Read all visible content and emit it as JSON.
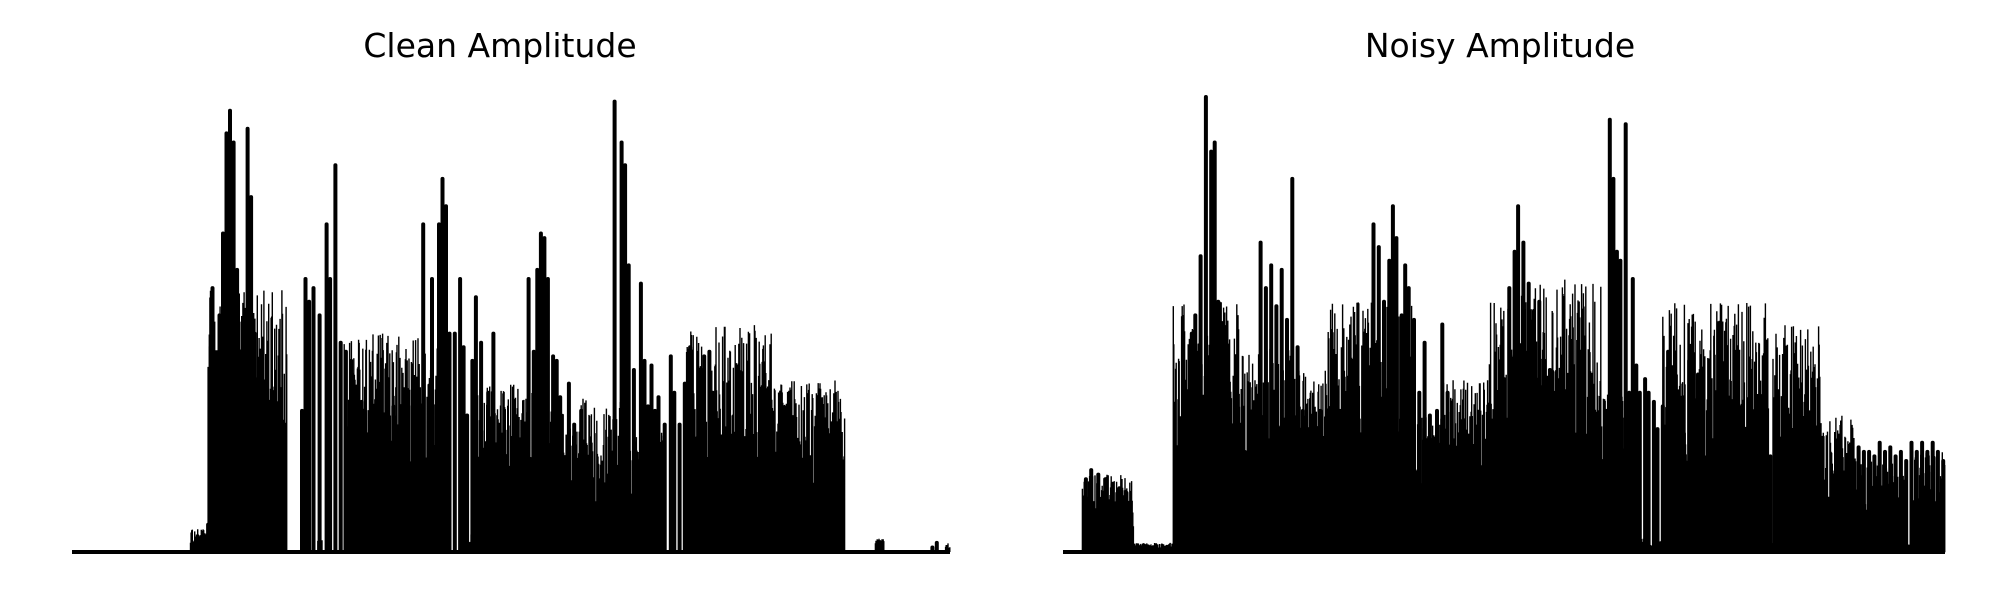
{
  "chart_data": [
    {
      "type": "line",
      "title": "Clean Amplitude",
      "xlabel": "",
      "ylabel": "",
      "axes": "off",
      "grid": false,
      "legend": "none",
      "color": "#000000",
      "ylim": [
        0,
        1
      ],
      "series": [
        {
          "segments": [
            [
              0.0,
              0.03,
              0.0
            ],
            [
              0.135,
              0.16,
              0.05
            ],
            [
              0.155,
              0.245,
              0.58
            ],
            [
              0.28,
              0.285,
              0.03
            ],
            [
              0.31,
              0.42,
              0.48
            ],
            [
              0.445,
              0.455,
              0.04
            ],
            [
              0.46,
              0.515,
              0.37
            ],
            [
              0.515,
              0.56,
              0.35
            ],
            [
              0.56,
              0.58,
              0.28
            ],
            [
              0.58,
              0.625,
              0.34
            ],
            [
              0.625,
              0.675,
              0.27
            ],
            [
              0.7,
              0.8,
              0.5
            ],
            [
              0.8,
              0.88,
              0.38
            ],
            [
              0.915,
              0.925,
              0.03
            ],
            [
              0.995,
              1.0,
              0.02
            ]
          ],
          "peaks": [
            [
              0.155,
              0.06
            ],
            [
              0.158,
              0.45
            ],
            [
              0.16,
              0.58
            ],
            [
              0.168,
              0.52
            ],
            [
              0.172,
              0.7
            ],
            [
              0.176,
              0.92
            ],
            [
              0.18,
              0.97
            ],
            [
              0.184,
              0.9
            ],
            [
              0.188,
              0.62
            ],
            [
              0.196,
              0.45
            ],
            [
              0.2,
              0.93
            ],
            [
              0.204,
              0.78
            ],
            [
              0.208,
              0.48
            ],
            [
              0.214,
              0.33
            ],
            [
              0.22,
              0.25
            ],
            [
              0.228,
              0.15
            ],
            [
              0.262,
              0.31
            ],
            [
              0.266,
              0.6
            ],
            [
              0.27,
              0.55
            ],
            [
              0.275,
              0.58
            ],
            [
              0.282,
              0.52
            ],
            [
              0.29,
              0.72
            ],
            [
              0.294,
              0.6
            ],
            [
              0.3,
              0.85
            ],
            [
              0.306,
              0.46
            ],
            [
              0.312,
              0.44
            ],
            [
              0.318,
              0.42
            ],
            [
              0.323,
              0.35
            ],
            [
              0.33,
              0.33
            ],
            [
              0.338,
              0.26
            ],
            [
              0.346,
              0.32
            ],
            [
              0.352,
              0.32
            ],
            [
              0.36,
              0.38
            ],
            [
              0.366,
              0.32
            ],
            [
              0.374,
              0.25
            ],
            [
              0.382,
              0.35
            ],
            [
              0.388,
              0.32
            ],
            [
              0.4,
              0.72
            ],
            [
              0.41,
              0.6
            ],
            [
              0.418,
              0.72
            ],
            [
              0.422,
              0.82
            ],
            [
              0.426,
              0.76
            ],
            [
              0.43,
              0.48
            ],
            [
              0.436,
              0.48
            ],
            [
              0.442,
              0.6
            ],
            [
              0.446,
              0.45
            ],
            [
              0.45,
              0.3
            ],
            [
              0.456,
              0.42
            ],
            [
              0.46,
              0.56
            ],
            [
              0.466,
              0.46
            ],
            [
              0.474,
              0.35
            ],
            [
              0.48,
              0.48
            ],
            [
              0.486,
              0.28
            ],
            [
              0.498,
              0.06
            ],
            [
              0.52,
              0.6
            ],
            [
              0.526,
              0.44
            ],
            [
              0.53,
              0.62
            ],
            [
              0.534,
              0.7
            ],
            [
              0.538,
              0.69
            ],
            [
              0.542,
              0.6
            ],
            [
              0.548,
              0.43
            ],
            [
              0.552,
              0.42
            ],
            [
              0.556,
              0.34
            ],
            [
              0.566,
              0.37
            ],
            [
              0.572,
              0.28
            ],
            [
              0.58,
              0.31
            ],
            [
              0.585,
              0.2
            ],
            [
              0.59,
              0.03
            ],
            [
              0.596,
              0.05
            ],
            [
              0.602,
              0.03
            ],
            [
              0.61,
              0.02
            ],
            [
              0.618,
              0.99
            ],
            [
              0.626,
              0.9
            ],
            [
              0.63,
              0.85
            ],
            [
              0.634,
              0.63
            ],
            [
              0.64,
              0.4
            ],
            [
              0.648,
              0.59
            ],
            [
              0.652,
              0.42
            ],
            [
              0.656,
              0.32
            ],
            [
              0.66,
              0.41
            ],
            [
              0.664,
              0.31
            ],
            [
              0.668,
              0.34
            ],
            [
              0.675,
              0.28
            ],
            [
              0.682,
              0.43
            ],
            [
              0.686,
              0.35
            ],
            [
              0.692,
              0.28
            ],
            [
              0.698,
              0.37
            ],
            [
              0.704,
              0.45
            ],
            [
              0.712,
              0.25
            ],
            [
              0.72,
              0.43
            ],
            [
              0.726,
              0.44
            ],
            [
              0.73,
              0.35
            ],
            [
              0.735,
              0.15
            ],
            [
              0.74,
              0.2
            ],
            [
              0.746,
              0.2
            ],
            [
              0.756,
              0.01
            ],
            [
              0.98,
              0.01
            ],
            [
              0.985,
              0.02
            ]
          ]
        }
      ]
    },
    {
      "type": "line",
      "title": "Noisy Amplitude",
      "xlabel": "",
      "ylabel": "",
      "axes": "off",
      "grid": false,
      "legend": "none",
      "color": "#000000",
      "ylim": [
        0,
        1
      ],
      "series": [
        {
          "segments": [
            [
              0.0,
              0.022,
              0.0
            ],
            [
              0.022,
              0.08,
              0.17
            ],
            [
              0.08,
              0.125,
              0.02
            ],
            [
              0.125,
              0.2,
              0.55
            ],
            [
              0.2,
              0.26,
              0.45
            ],
            [
              0.26,
              0.3,
              0.4
            ],
            [
              0.3,
              0.4,
              0.55
            ],
            [
              0.4,
              0.43,
              0.3
            ],
            [
              0.43,
              0.48,
              0.38
            ],
            [
              0.48,
              0.52,
              0.55
            ],
            [
              0.52,
              0.52,
              0.0
            ],
            [
              0.52,
              0.61,
              0.6
            ],
            [
              0.61,
              0.64,
              0.35
            ],
            [
              0.64,
              0.68,
              0.03
            ],
            [
              0.68,
              0.8,
              0.55
            ],
            [
              0.8,
              0.805,
              0.03
            ],
            [
              0.805,
              0.86,
              0.5
            ],
            [
              0.86,
              0.9,
              0.3
            ],
            [
              0.9,
              0.905,
              0.03
            ],
            [
              0.905,
              0.955,
              0.2
            ],
            [
              0.955,
              0.965,
              0.02
            ],
            [
              0.965,
              1.0,
              0.22
            ]
          ],
          "peaks": [
            [
              0.026,
              0.16
            ],
            [
              0.032,
              0.18
            ],
            [
              0.04,
              0.17
            ],
            [
              0.048,
              0.16
            ],
            [
              0.056,
              0.15
            ],
            [
              0.064,
              0.14
            ],
            [
              0.072,
              0.13
            ],
            [
              0.128,
              0.2
            ],
            [
              0.134,
              0.24
            ],
            [
              0.14,
              0.22
            ],
            [
              0.146,
              0.48
            ],
            [
              0.15,
              0.52
            ],
            [
              0.156,
              0.65
            ],
            [
              0.162,
              1.0
            ],
            [
              0.168,
              0.88
            ],
            [
              0.172,
              0.9
            ],
            [
              0.176,
              0.55
            ],
            [
              0.184,
              0.43
            ],
            [
              0.19,
              0.28
            ],
            [
              0.196,
              0.23
            ],
            [
              0.2,
              0.28
            ],
            [
              0.206,
              0.22
            ],
            [
              0.212,
              0.23
            ],
            [
              0.218,
              0.22
            ],
            [
              0.224,
              0.68
            ],
            [
              0.23,
              0.58
            ],
            [
              0.236,
              0.63
            ],
            [
              0.242,
              0.54
            ],
            [
              0.248,
              0.62
            ],
            [
              0.254,
              0.51
            ],
            [
              0.26,
              0.82
            ],
            [
              0.266,
              0.45
            ],
            [
              0.272,
              0.31
            ],
            [
              0.278,
              0.27
            ],
            [
              0.286,
              0.24
            ],
            [
              0.292,
              0.31
            ],
            [
              0.3,
              0.23
            ],
            [
              0.308,
              0.26
            ],
            [
              0.314,
              0.31
            ],
            [
              0.322,
              0.3
            ],
            [
              0.33,
              0.21
            ],
            [
              0.34,
              0.1
            ],
            [
              0.352,
              0.72
            ],
            [
              0.358,
              0.67
            ],
            [
              0.364,
              0.55
            ],
            [
              0.37,
              0.64
            ],
            [
              0.374,
              0.76
            ],
            [
              0.378,
              0.69
            ],
            [
              0.384,
              0.52
            ],
            [
              0.388,
              0.63
            ],
            [
              0.392,
              0.58
            ],
            [
              0.398,
              0.51
            ],
            [
              0.404,
              0.35
            ],
            [
              0.41,
              0.46
            ],
            [
              0.416,
              0.3
            ],
            [
              0.424,
              0.31
            ],
            [
              0.43,
              0.5
            ],
            [
              0.436,
              0.35
            ],
            [
              0.45,
              0.02
            ],
            [
              0.5,
              0.38
            ],
            [
              0.506,
              0.58
            ],
            [
              0.512,
              0.66
            ],
            [
              0.516,
              0.76
            ],
            [
              0.522,
              0.68
            ],
            [
              0.528,
              0.59
            ],
            [
              0.534,
              0.53
            ],
            [
              0.54,
              0.55
            ],
            [
              0.546,
              0.42
            ],
            [
              0.552,
              0.4
            ],
            [
              0.558,
              0.35
            ],
            [
              0.564,
              0.25
            ],
            [
              0.57,
              0.34
            ],
            [
              0.576,
              0.2
            ],
            [
              0.582,
              0.05
            ],
            [
              0.588,
              0.04
            ],
            [
              0.594,
              0.03
            ],
            [
              0.616,
              0.31
            ],
            [
              0.62,
              0.95
            ],
            [
              0.624,
              0.82
            ],
            [
              0.628,
              0.66
            ],
            [
              0.632,
              0.64
            ],
            [
              0.638,
              0.94
            ],
            [
              0.642,
              0.35
            ],
            [
              0.646,
              0.6
            ],
            [
              0.65,
              0.41
            ],
            [
              0.654,
              0.35
            ],
            [
              0.66,
              0.38
            ],
            [
              0.664,
              0.35
            ],
            [
              0.67,
              0.33
            ],
            [
              0.674,
              0.27
            ],
            [
              0.68,
              0.32
            ],
            [
              0.686,
              0.44
            ],
            [
              0.69,
              0.38
            ],
            [
              0.694,
              0.33
            ],
            [
              0.698,
              0.27
            ],
            [
              0.704,
              0.26
            ],
            [
              0.71,
              0.42
            ],
            [
              0.714,
              0.22
            ],
            [
              0.72,
              0.39
            ],
            [
              0.726,
              0.19
            ],
            [
              0.732,
              0.2
            ],
            [
              0.738,
              0.17
            ],
            [
              0.79,
              0.21
            ],
            [
              0.796,
              0.2
            ],
            [
              0.802,
              0.21
            ],
            [
              0.808,
              0.22
            ],
            [
              0.816,
              0.21
            ],
            [
              0.82,
              0.2
            ],
            [
              0.826,
              0.22
            ],
            [
              0.832,
              0.19
            ],
            [
              0.838,
              0.2
            ],
            [
              0.844,
              0.2
            ],
            [
              0.896,
              0.17
            ],
            [
              0.902,
              0.23
            ],
            [
              0.908,
              0.22
            ],
            [
              0.914,
              0.22
            ],
            [
              0.92,
              0.21
            ],
            [
              0.926,
              0.24
            ],
            [
              0.932,
              0.22
            ],
            [
              0.938,
              0.23
            ],
            [
              0.944,
              0.21
            ],
            [
              0.95,
              0.22
            ],
            [
              0.956,
              0.2
            ],
            [
              0.962,
              0.24
            ],
            [
              0.968,
              0.22
            ],
            [
              0.974,
              0.24
            ],
            [
              0.98,
              0.22
            ],
            [
              0.986,
              0.24
            ],
            [
              0.992,
              0.22
            ],
            [
              0.998,
              0.2
            ]
          ]
        }
      ]
    }
  ]
}
